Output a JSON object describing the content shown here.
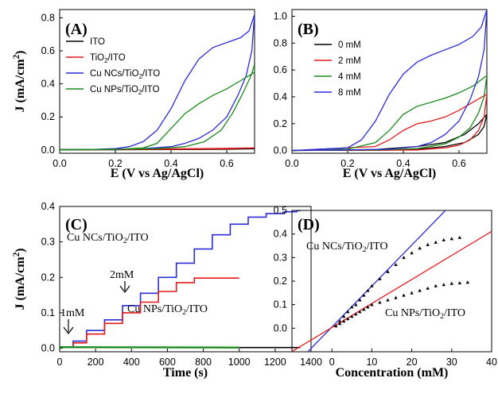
{
  "chart_data": [
    {
      "panel": "(A)",
      "type": "line",
      "xlabel": "E (V vs Ag/AgCl)",
      "ylabel": "J (mA/cm²)",
      "xlim": [
        0.0,
        0.7
      ],
      "ylim": [
        -0.02,
        0.85
      ],
      "xticks": [
        "0.0",
        "0.2",
        "0.4",
        "0.6"
      ],
      "yticks": [
        "0.0",
        "0.2",
        "0.4",
        "0.6",
        "0.8"
      ],
      "xticks_v": [
        0.0,
        0.2,
        0.4,
        0.6
      ],
      "yticks_v": [
        0.0,
        0.2,
        0.4,
        0.6,
        0.8
      ],
      "legend_placement": "top-left",
      "series": [
        {
          "name": "ITO",
          "color": "#000000",
          "forward": [
            [
              0,
              0
            ],
            [
              0.2,
              0.001
            ],
            [
              0.4,
              0.002
            ],
            [
              0.6,
              0.004
            ],
            [
              0.7,
              0.007
            ]
          ],
          "reverse": [
            [
              0.7,
              0.007
            ],
            [
              0.5,
              0.005
            ],
            [
              0.3,
              0.003
            ],
            [
              0.1,
              0.002
            ],
            [
              0,
              0.001
            ]
          ]
        },
        {
          "name": "TiO₂/ITO",
          "color": "#e41a1c",
          "forward": [
            [
              0,
              0
            ],
            [
              0.2,
              0.002
            ],
            [
              0.4,
              0.004
            ],
            [
              0.6,
              0.007
            ],
            [
              0.7,
              0.012
            ]
          ],
          "reverse": [
            [
              0.7,
              0.012
            ],
            [
              0.5,
              0.008
            ],
            [
              0.3,
              0.005
            ],
            [
              0.1,
              0.003
            ],
            [
              0,
              0.002
            ]
          ]
        },
        {
          "name": "Cu NCs/TiO₂/ITO",
          "color": "#2b2bd8",
          "forward": [
            [
              0,
              0
            ],
            [
              0.1,
              0.002
            ],
            [
              0.2,
              0.008
            ],
            [
              0.25,
              0.02
            ],
            [
              0.3,
              0.05
            ],
            [
              0.35,
              0.12
            ],
            [
              0.4,
              0.25
            ],
            [
              0.45,
              0.42
            ],
            [
              0.5,
              0.55
            ],
            [
              0.55,
              0.62
            ],
            [
              0.6,
              0.65
            ],
            [
              0.65,
              0.68
            ],
            [
              0.68,
              0.72
            ],
            [
              0.7,
              0.82
            ]
          ],
          "reverse": [
            [
              0.7,
              0.82
            ],
            [
              0.69,
              0.6
            ],
            [
              0.67,
              0.45
            ],
            [
              0.64,
              0.33
            ],
            [
              0.6,
              0.2
            ],
            [
              0.55,
              0.12
            ],
            [
              0.5,
              0.07
            ],
            [
              0.45,
              0.04
            ],
            [
              0.4,
              0.02
            ],
            [
              0.3,
              0.008
            ],
            [
              0.2,
              0.004
            ],
            [
              0,
              0.002
            ]
          ]
        },
        {
          "name": "Cu NPs/TiO₂/ITO",
          "color": "#1a8a1a",
          "forward": [
            [
              0,
              0
            ],
            [
              0.2,
              0.003
            ],
            [
              0.3,
              0.012
            ],
            [
              0.35,
              0.04
            ],
            [
              0.4,
              0.13
            ],
            [
              0.45,
              0.22
            ],
            [
              0.5,
              0.28
            ],
            [
              0.55,
              0.33
            ],
            [
              0.6,
              0.37
            ],
            [
              0.65,
              0.42
            ],
            [
              0.7,
              0.47
            ]
          ],
          "reverse": [
            [
              0.7,
              0.52
            ],
            [
              0.69,
              0.46
            ],
            [
              0.66,
              0.35
            ],
            [
              0.62,
              0.22
            ],
            [
              0.58,
              0.12
            ],
            [
              0.52,
              0.05
            ],
            [
              0.45,
              0.02
            ],
            [
              0.35,
              0.008
            ],
            [
              0.2,
              0.004
            ],
            [
              0,
              0.002
            ]
          ]
        }
      ]
    },
    {
      "panel": "(B)",
      "type": "line",
      "xlabel": "E (V vs Ag/AgCl)",
      "ylabel": "",
      "xlim": [
        0.0,
        0.7
      ],
      "ylim": [
        -0.02,
        1.05
      ],
      "xticks": [
        "0.0",
        "0.2",
        "0.4",
        "0.6"
      ],
      "yticks": [
        "0.0",
        "0.2",
        "0.4",
        "0.6",
        "0.8",
        "1.0"
      ],
      "xticks_v": [
        0.0,
        0.2,
        0.4,
        0.6
      ],
      "yticks_v": [
        0.0,
        0.2,
        0.4,
        0.6,
        0.8,
        1.0
      ],
      "legend_placement": "top-left",
      "series": [
        {
          "name": "0  mM",
          "color": "#000000",
          "forward": [
            [
              0,
              0
            ],
            [
              0.3,
              0.008
            ],
            [
              0.45,
              0.03
            ],
            [
              0.55,
              0.06
            ],
            [
              0.62,
              0.12
            ],
            [
              0.67,
              0.2
            ],
            [
              0.7,
              0.27
            ]
          ],
          "reverse": [
            [
              0.7,
              0.27
            ],
            [
              0.69,
              0.18
            ],
            [
              0.67,
              0.12
            ],
            [
              0.62,
              0.06
            ],
            [
              0.55,
              0.03
            ],
            [
              0.45,
              0.01
            ],
            [
              0.3,
              0.003
            ],
            [
              0,
              0.002
            ]
          ]
        },
        {
          "name": "2  mM",
          "color": "#e41a1c",
          "forward": [
            [
              0,
              0
            ],
            [
              0.3,
              0.03
            ],
            [
              0.35,
              0.08
            ],
            [
              0.4,
              0.15
            ],
            [
              0.45,
              0.2
            ],
            [
              0.5,
              0.22
            ],
            [
              0.55,
              0.25
            ],
            [
              0.6,
              0.3
            ],
            [
              0.65,
              0.36
            ],
            [
              0.7,
              0.42
            ]
          ],
          "reverse": [
            [
              0.7,
              0.42
            ],
            [
              0.69,
              0.25
            ],
            [
              0.67,
              0.15
            ],
            [
              0.64,
              0.08
            ],
            [
              0.6,
              0.04
            ],
            [
              0.55,
              0.02
            ],
            [
              0.45,
              0.005
            ],
            [
              0.3,
              0.002
            ],
            [
              0,
              0.001
            ]
          ]
        },
        {
          "name": "4  mM",
          "color": "#1a8a1a",
          "forward": [
            [
              0,
              0
            ],
            [
              0.2,
              0.01
            ],
            [
              0.3,
              0.06
            ],
            [
              0.35,
              0.15
            ],
            [
              0.4,
              0.27
            ],
            [
              0.45,
              0.33
            ],
            [
              0.5,
              0.36
            ],
            [
              0.55,
              0.39
            ],
            [
              0.6,
              0.43
            ],
            [
              0.65,
              0.48
            ],
            [
              0.7,
              0.56
            ]
          ],
          "reverse": [
            [
              0.7,
              0.56
            ],
            [
              0.69,
              0.4
            ],
            [
              0.67,
              0.28
            ],
            [
              0.64,
              0.17
            ],
            [
              0.6,
              0.1
            ],
            [
              0.55,
              0.05
            ],
            [
              0.45,
              0.015
            ],
            [
              0.3,
              0.005
            ],
            [
              0,
              0.002
            ]
          ]
        },
        {
          "name": "8  mM",
          "color": "#2b2bd8",
          "forward": [
            [
              0,
              0
            ],
            [
              0.2,
              0.02
            ],
            [
              0.25,
              0.08
            ],
            [
              0.3,
              0.22
            ],
            [
              0.35,
              0.42
            ],
            [
              0.4,
              0.57
            ],
            [
              0.45,
              0.66
            ],
            [
              0.5,
              0.71
            ],
            [
              0.55,
              0.75
            ],
            [
              0.6,
              0.79
            ],
            [
              0.65,
              0.85
            ],
            [
              0.68,
              0.92
            ],
            [
              0.7,
              1.05
            ]
          ],
          "reverse": [
            [
              0.7,
              1.05
            ],
            [
              0.69,
              0.75
            ],
            [
              0.67,
              0.55
            ],
            [
              0.64,
              0.38
            ],
            [
              0.6,
              0.22
            ],
            [
              0.55,
              0.12
            ],
            [
              0.5,
              0.06
            ],
            [
              0.45,
              0.03
            ],
            [
              0.35,
              0.01
            ],
            [
              0.2,
              0.004
            ],
            [
              0,
              0.002
            ]
          ]
        }
      ]
    },
    {
      "panel": "(C)",
      "type": "line",
      "xlabel": "Time (s)",
      "ylabel": "J (mA/cm²)",
      "xlim": [
        0,
        1400
      ],
      "ylim": [
        -0.01,
        0.4
      ],
      "xticks": [
        "0",
        "200",
        "400",
        "600",
        "800",
        "1000",
        "1200",
        "1400"
      ],
      "yticks": [
        "0.0",
        "0.1",
        "0.2",
        "0.3",
        "0.4"
      ],
      "xticks_v": [
        0,
        200,
        400,
        600,
        800,
        1000,
        1200,
        1400
      ],
      "yticks_v": [
        0.0,
        0.1,
        0.2,
        0.3,
        0.4
      ],
      "annotations": [
        "Cu NCs/TiO₂/ITO",
        "Cu NPs/TiO₂/ITO",
        "1mM",
        "2mM"
      ],
      "series": [
        {
          "name": "Cu NCs/TiO₂/ITO",
          "color": "#2b2bd8",
          "points": [
            [
              0,
              0.003
            ],
            [
              50,
              0.003
            ],
            [
              100,
              0.02
            ],
            [
              200,
              0.05
            ],
            [
              300,
              0.08
            ],
            [
              400,
              0.12
            ],
            [
              500,
              0.155
            ],
            [
              600,
              0.2
            ],
            [
              700,
              0.24
            ],
            [
              800,
              0.28
            ],
            [
              900,
              0.32
            ],
            [
              1000,
              0.35
            ],
            [
              1100,
              0.37
            ],
            [
              1200,
              0.38
            ],
            [
              1300,
              0.385
            ],
            [
              1340,
              0.388
            ]
          ]
        },
        {
          "name": "Cu NPs/TiO₂/ITO",
          "color": "#e41a1c",
          "points": [
            [
              0,
              0.003
            ],
            [
              50,
              0.003
            ],
            [
              100,
              0.015
            ],
            [
              200,
              0.04
            ],
            [
              300,
              0.07
            ],
            [
              400,
              0.1
            ],
            [
              500,
              0.13
            ],
            [
              600,
              0.16
            ],
            [
              700,
              0.185
            ],
            [
              800,
              0.198
            ],
            [
              900,
              0.198
            ],
            [
              1000,
              0.198
            ]
          ]
        },
        {
          "name": "TiO₂/ITO",
          "color": "#1a8a1a",
          "points": [
            [
              0,
              0.003
            ],
            [
              1000,
              0.002
            ]
          ]
        },
        {
          "name": "ITO",
          "color": "#000000",
          "points": [
            [
              1000,
              0.002
            ],
            [
              1340,
              0.002
            ]
          ]
        }
      ]
    },
    {
      "panel": "(D)",
      "type": "scatter",
      "xlabel": "Concentration (mM)",
      "ylabel": "",
      "xlim": [
        -10,
        40
      ],
      "ylim": [
        -0.1,
        0.5
      ],
      "xticks": [
        "0",
        "10",
        "20",
        "30",
        "40"
      ],
      "yticks": [
        "0.0",
        "0.1",
        "0.2",
        "0.3",
        "0.4",
        "0.5"
      ],
      "xticks_v": [
        0,
        10,
        20,
        30,
        40
      ],
      "yticks_v": [
        0.0,
        0.1,
        0.2,
        0.3,
        0.4,
        0.5
      ],
      "annotations": [
        "Cu NCs/TiO₂/ITO",
        "Cu NPs/TiO₂/ITO"
      ],
      "series": [
        {
          "name": "Cu NCs/TiO₂/ITO",
          "color": "#2b2bd8",
          "fit": {
            "slope": 0.0174,
            "intercept": 0.005
          },
          "points": [
            [
              1,
              0.01
            ],
            [
              2,
              0.03
            ],
            [
              3,
              0.05
            ],
            [
              4,
              0.07
            ],
            [
              5,
              0.09
            ],
            [
              6,
              0.1
            ],
            [
              7,
              0.12
            ],
            [
              8,
              0.14
            ],
            [
              9,
              0.16
            ],
            [
              10,
              0.18
            ],
            [
              12,
              0.21
            ],
            [
              14,
              0.24
            ],
            [
              16,
              0.27
            ],
            [
              18,
              0.3
            ],
            [
              20,
              0.32
            ],
            [
              22,
              0.34
            ],
            [
              24,
              0.355
            ],
            [
              26,
              0.365
            ],
            [
              28,
              0.375
            ],
            [
              30,
              0.38
            ],
            [
              32,
              0.385
            ]
          ]
        },
        {
          "name": "Cu NPs/TiO₂/ITO",
          "color": "#e41a1c",
          "fit": {
            "slope": 0.0102,
            "intercept": 0.003
          },
          "points": [
            [
              1,
              0.01
            ],
            [
              2,
              0.02
            ],
            [
              3,
              0.03
            ],
            [
              4,
              0.04
            ],
            [
              5,
              0.05
            ],
            [
              6,
              0.06
            ],
            [
              7,
              0.07
            ],
            [
              8,
              0.08
            ],
            [
              9,
              0.09
            ],
            [
              10,
              0.1
            ],
            [
              12,
              0.11
            ],
            [
              14,
              0.12
            ],
            [
              16,
              0.13
            ],
            [
              18,
              0.14
            ],
            [
              20,
              0.15
            ],
            [
              22,
              0.16
            ],
            [
              24,
              0.17
            ],
            [
              26,
              0.18
            ],
            [
              28,
              0.185
            ],
            [
              30,
              0.19
            ],
            [
              32,
              0.192
            ],
            [
              34,
              0.195
            ]
          ]
        }
      ]
    }
  ]
}
